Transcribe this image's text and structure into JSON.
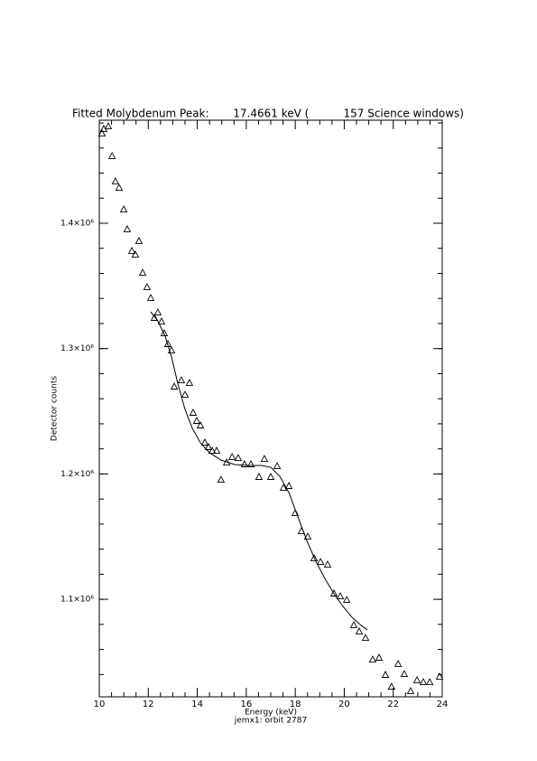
{
  "chart_data": {
    "type": "scatter",
    "title": "Fitted Molybdenum Peak:       17.4661 keV (          157 Science windows)",
    "x_label": "Energy (keV)",
    "subtitle": "jemx1: orbit 2787",
    "y_label": "Detector counts",
    "xlim": [
      10,
      24
    ],
    "xticks": [
      10,
      12,
      14,
      16,
      18,
      20,
      22,
      24
    ],
    "ylim": [
      1022200,
      1482200
    ],
    "yticks": [
      {
        "value": 1100000,
        "label": "1.1×10⁶"
      },
      {
        "value": 1200000,
        "label": "1.2×10⁶"
      },
      {
        "value": 1300000,
        "label": "1.3×10⁶"
      },
      {
        "value": 1400000,
        "label": "1.4×10⁶"
      }
    ],
    "series": [
      {
        "style": "points",
        "color": "#000000",
        "x": [
          10.11,
          10.18,
          10.37,
          10.52,
          10.66,
          10.81,
          11.0,
          11.14,
          11.33,
          11.47,
          11.62,
          11.77,
          11.95,
          12.1,
          12.25,
          12.39,
          12.54,
          12.65,
          12.8,
          12.95,
          13.06,
          13.35,
          13.5,
          13.68,
          13.83,
          13.98,
          14.13,
          14.31,
          14.46,
          14.61,
          14.79,
          14.97,
          15.2,
          15.42,
          15.67,
          15.93,
          16.19,
          16.52,
          16.74,
          17.0,
          17.26,
          17.52,
          17.74,
          18.0,
          18.25,
          18.51,
          18.77,
          19.03,
          19.32,
          19.58,
          19.84,
          20.1,
          20.39,
          20.61,
          20.87,
          21.16,
          21.42,
          21.68,
          21.93,
          22.2,
          22.45,
          22.71,
          22.97,
          23.23,
          23.49,
          23.89
        ],
        "values": [
          1471400,
          1475000,
          1477100,
          1453400,
          1433200,
          1428100,
          1410800,
          1395000,
          1377700,
          1374800,
          1385600,
          1360300,
          1348800,
          1340200,
          1324300,
          1328600,
          1321400,
          1312000,
          1303400,
          1298300,
          1269500,
          1274500,
          1263000,
          1272400,
          1248600,
          1242100,
          1238500,
          1224800,
          1221200,
          1218300,
          1218300,
          1195200,
          1208900,
          1213300,
          1212500,
          1207500,
          1207500,
          1197400,
          1211800,
          1197400,
          1206000,
          1188700,
          1190200,
          1168500,
          1154100,
          1149800,
          1132500,
          1129600,
          1127500,
          1104400,
          1102200,
          1099300,
          1079200,
          1074100,
          1069000,
          1051700,
          1053200,
          1039500,
          1030100,
          1048200,
          1040200,
          1026500,
          1035200,
          1033700,
          1033700,
          1038100
        ]
      },
      {
        "style": "line",
        "color": "#000000",
        "x": [
          12.1,
          12.39,
          12.69,
          12.95,
          13.21,
          13.5,
          13.8,
          14.13,
          14.5,
          14.97,
          15.53,
          16.08,
          16.63,
          17.0,
          17.37,
          17.74,
          18.11,
          18.47,
          18.84,
          19.21,
          19.58,
          19.95,
          20.32,
          20.69,
          20.94
        ],
        "values": [
          1329300,
          1322100,
          1309900,
          1293300,
          1271700,
          1251500,
          1236300,
          1224800,
          1216900,
          1211100,
          1207500,
          1206800,
          1206800,
          1205300,
          1198100,
          1185100,
          1165700,
          1146900,
          1130300,
          1116600,
          1104400,
          1094300,
          1085600,
          1079200,
          1075600
        ]
      }
    ]
  }
}
